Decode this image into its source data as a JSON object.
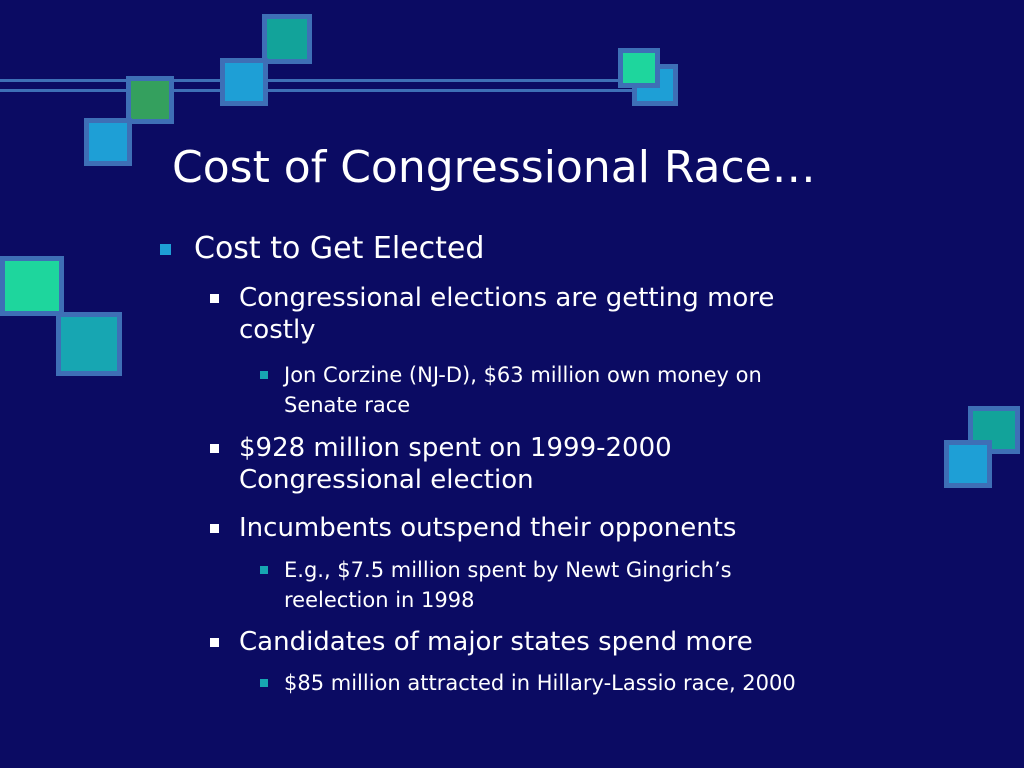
{
  "slide": {
    "title": "Cost of Congressional Race…",
    "bullets": {
      "b1": "Cost to Get Elected",
      "b1_1_line1": "Congressional elections are getting more",
      "b1_1_line2": "costly",
      "b1_1_1_line1": "Jon Corzine (NJ-D), $63 million own money on",
      "b1_1_1_line2": "Senate race",
      "b1_2_line1": "$928 million spent on 1999-2000",
      "b1_2_line2": "Congressional election",
      "b1_3": "Incumbents outspend their opponents",
      "b1_3_1_line1": "E.g., $7.5 million spent by Newt Gingrich’s",
      "b1_3_1_line2": "reelection in 1998",
      "b1_4": "Candidates of major states spend more",
      "b1_4_1": "$85 million attracted in Hillary-Lassio race, 2000"
    }
  },
  "colors": {
    "background": "#0b0b63",
    "frame": "#3e6fb6",
    "teal": "#12a39a",
    "blue": "#1e9fd6",
    "green": "#34a05e",
    "mint": "#1ed69d"
  }
}
